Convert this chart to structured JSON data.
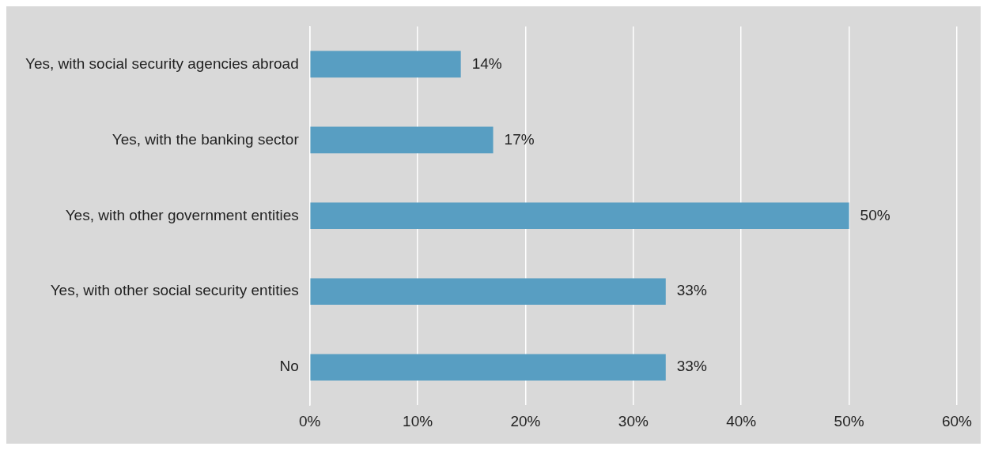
{
  "chart_data": {
    "type": "bar",
    "orientation": "horizontal",
    "categories": [
      "Yes, with social security agencies abroad",
      "Yes, with the banking sector",
      "Yes, with other government entities",
      "Yes, with other social security entities",
      "No"
    ],
    "values": [
      14,
      17,
      50,
      33,
      33
    ],
    "value_labels": [
      "14%",
      "17%",
      "50%",
      "33%",
      "33%"
    ],
    "color": "#589ec2",
    "xlim": [
      0,
      60
    ],
    "xticks": [
      {
        "value": 0,
        "label": "0%"
      },
      {
        "value": 10,
        "label": "10%"
      },
      {
        "value": 20,
        "label": "20%"
      },
      {
        "value": 30,
        "label": "30%"
      },
      {
        "value": 40,
        "label": "40%"
      },
      {
        "value": 50,
        "label": "50%"
      },
      {
        "value": 60,
        "label": "60%"
      }
    ],
    "grid": "x",
    "legend": false
  }
}
